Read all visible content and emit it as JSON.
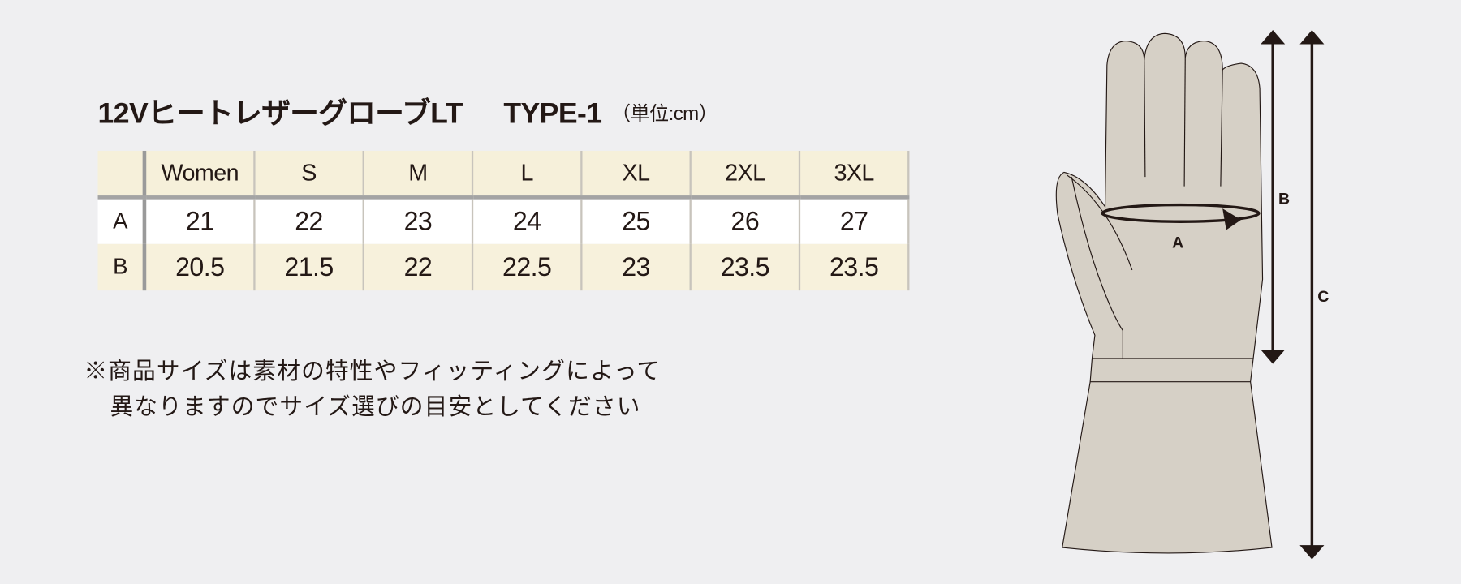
{
  "title": {
    "product": "12VヒートレザーグローブLT",
    "type": "TYPE-1",
    "unit": "（単位:cm）"
  },
  "table": {
    "columns": [
      "Women",
      "S",
      "M",
      "L",
      "XL",
      "2XL",
      "3XL"
    ],
    "rows": [
      {
        "label": "A",
        "values": [
          "21",
          "22",
          "23",
          "24",
          "25",
          "26",
          "27"
        ]
      },
      {
        "label": "B",
        "values": [
          "20.5",
          "21.5",
          "22",
          "22.5",
          "23",
          "23.5",
          "23.5"
        ]
      }
    ]
  },
  "note": {
    "line1": "※商品サイズは素材の特性やフィッティングによって",
    "line2": "異なりますのでサイズ選びの目安としてください"
  },
  "diagram": {
    "label_a": "A",
    "label_b": "B",
    "label_c": "C"
  },
  "colors": {
    "background": "#efeff1",
    "header": "#f6f0da",
    "row_b": "#f7f1dc",
    "glove": "#d6d0c6"
  }
}
